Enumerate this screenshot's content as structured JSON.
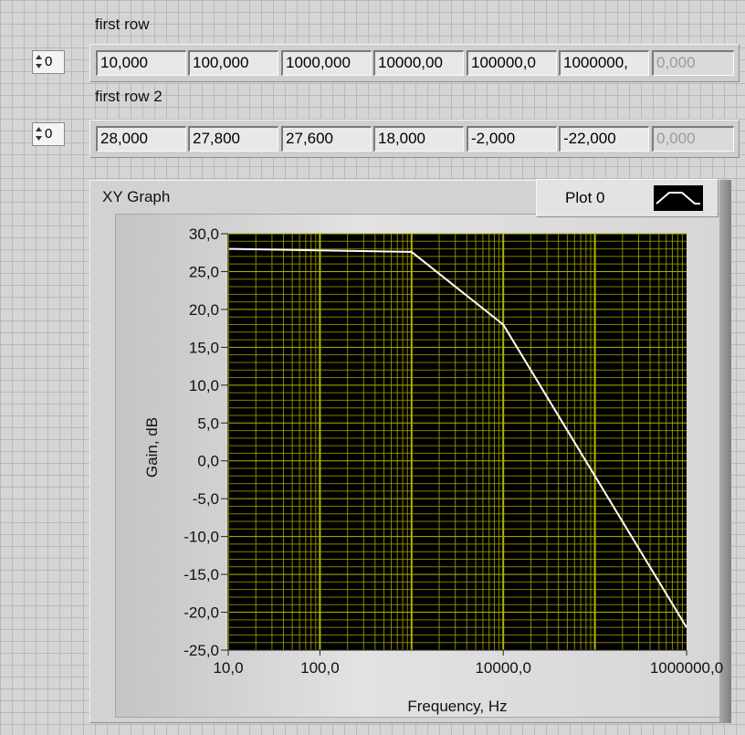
{
  "array1": {
    "label": "first row",
    "index": "0",
    "cells": [
      "10,000",
      "100,000",
      "1000,000",
      "10000,00",
      "100000,0",
      "1000000,",
      "0,000"
    ]
  },
  "array2": {
    "label": "first row 2",
    "index": "0",
    "cells": [
      "28,000",
      "27,800",
      "27,600",
      "18,000",
      "-2,000",
      "-22,000",
      "0,000"
    ]
  },
  "graph": {
    "title": "XY Graph",
    "legend": {
      "plot_name": "Plot 0"
    },
    "colors": {
      "plot_bg": "#000000",
      "grid": "#b3b300",
      "line": "#ffffff"
    }
  },
  "chart_data": {
    "type": "line",
    "title": "XY Graph",
    "xlabel": "Frequency, Hz",
    "ylabel": "Gain, dB",
    "xscale": "log",
    "xlim": [
      10,
      1000000
    ],
    "ylim": [
      -25,
      30
    ],
    "grid": true,
    "legend_placement": "top-right",
    "x_ticks": [
      "10,0",
      "100,0",
      "10000,0",
      "1000000,0"
    ],
    "y_ticks": [
      "30,0",
      "25,0",
      "20,0",
      "15,0",
      "10,0",
      "5,0",
      "0,0",
      "-5,0",
      "-10,0",
      "-15,0",
      "-20,0",
      "-25,0"
    ],
    "series": [
      {
        "name": "Plot 0",
        "x": [
          10,
          100,
          1000,
          10000,
          100000,
          1000000
        ],
        "y": [
          28,
          27.8,
          27.6,
          18,
          -2,
          -22
        ]
      }
    ]
  }
}
